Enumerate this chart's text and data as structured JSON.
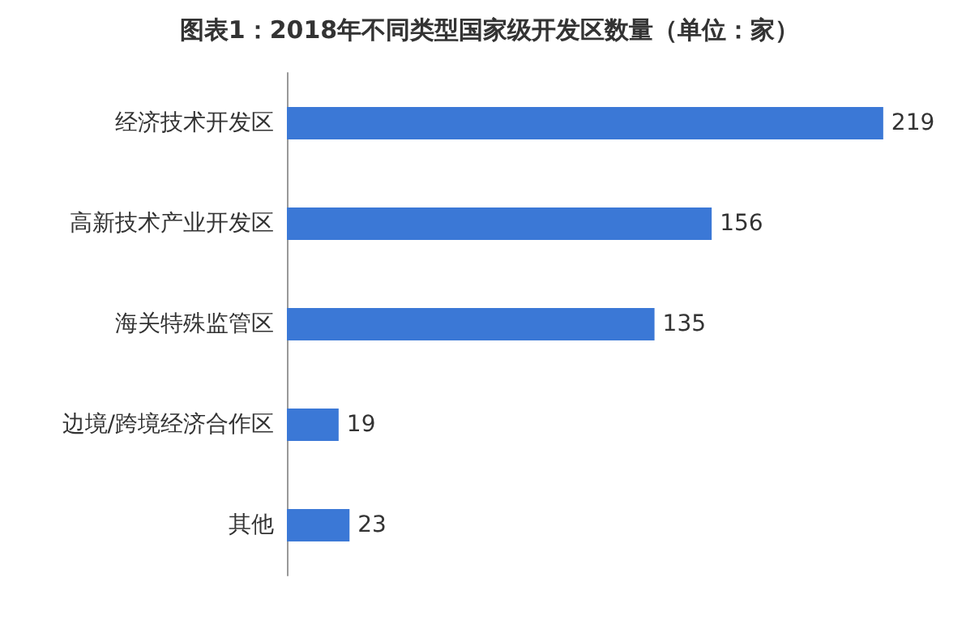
{
  "chart_data": {
    "type": "bar",
    "orientation": "horizontal",
    "title": "图表1：2018年不同类型国家级开发区数量（单位：家）",
    "categories": [
      "经济技术开发区",
      "高新技术产业开发区",
      "海关特殊监管区",
      "边境/跨境经济合作区",
      "其他"
    ],
    "values": [
      219,
      156,
      135,
      19,
      23
    ],
    "color": "#3b78d6",
    "data_labels": true,
    "tick_labels": "y",
    "grid": false
  }
}
